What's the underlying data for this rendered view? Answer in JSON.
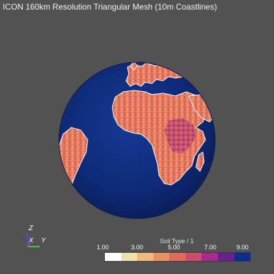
{
  "window": {
    "title": "ICON 160km Resolution Triangular Mesh (10m Coastlines)"
  },
  "axes_widget": {
    "z_label": "Z",
    "x_label": "X",
    "y_label": "Y"
  },
  "legend": {
    "title": "Soil Type / 1",
    "tick_1": "1.00",
    "tick_2": "3.00",
    "tick_3": "5.00",
    "tick_4": "7.00",
    "tick_5": "9.00",
    "range": [
      1,
      9
    ],
    "colors": [
      "#ffffff",
      "#efe2a8",
      "#f0b97e",
      "#ec9063",
      "#e26a5b",
      "#cd4b6e",
      "#a52d85",
      "#6c1f8f",
      "#0d2c8e"
    ]
  },
  "colors": {
    "background": "#525252",
    "ocean": "#0e2a78",
    "land": "#e8795f",
    "land_alt": "#c85a66"
  }
}
